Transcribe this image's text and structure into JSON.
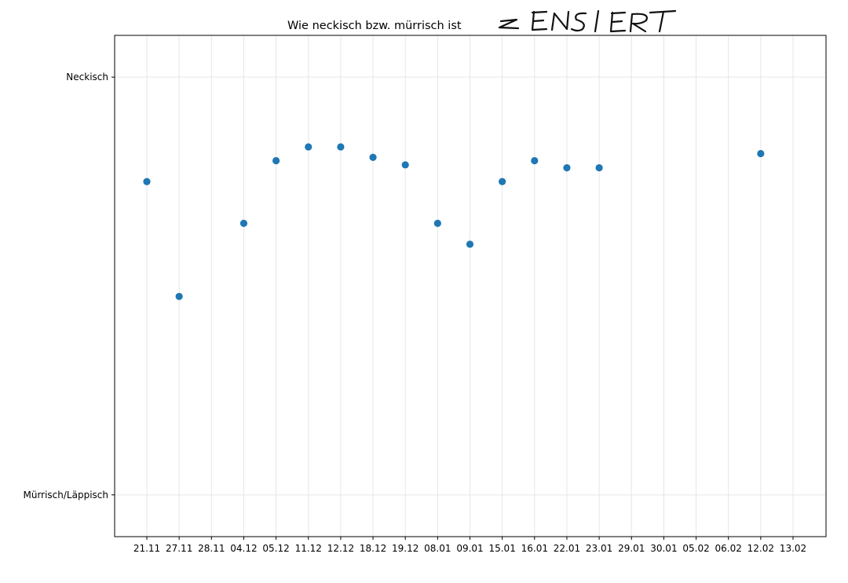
{
  "chart_data": {
    "type": "scatter",
    "title": "Wie neckisch bzw. mürrisch ist",
    "title_censored_mark": "ZENSIERT",
    "xlabel": "",
    "ylabel": "",
    "categories": [
      "21.11",
      "27.11",
      "28.11",
      "04.12",
      "05.12",
      "11.12",
      "12.12",
      "18.12",
      "19.12",
      "08.01",
      "09.01",
      "15.01",
      "16.01",
      "22.01",
      "23.01",
      "29.01",
      "30.01",
      "05.02",
      "06.02",
      "12.02",
      "13.02"
    ],
    "y_ticks": [
      {
        "label": "Neckisch",
        "value": 1
      },
      {
        "label": "Mürrisch/Läppisch",
        "value": 0
      }
    ],
    "ylim": [
      -0.1,
      1.1
    ],
    "grid": true,
    "point_color": "#1f77b4",
    "grid_color": "#e6e6e6",
    "points": [
      {
        "x": "21.11",
        "y": 0.75
      },
      {
        "x": "27.11",
        "y": 0.475
      },
      {
        "x": "04.12",
        "y": 0.65
      },
      {
        "x": "05.12",
        "y": 0.8
      },
      {
        "x": "11.12",
        "y": 0.833
      },
      {
        "x": "12.12",
        "y": 0.833
      },
      {
        "x": "18.12",
        "y": 0.808
      },
      {
        "x": "19.12",
        "y": 0.79
      },
      {
        "x": "08.01",
        "y": 0.65
      },
      {
        "x": "09.01",
        "y": 0.6
      },
      {
        "x": "15.01",
        "y": 0.75
      },
      {
        "x": "16.01",
        "y": 0.8
      },
      {
        "x": "22.01",
        "y": 0.783
      },
      {
        "x": "23.01",
        "y": 0.783
      },
      {
        "x": "12.02",
        "y": 0.817
      }
    ]
  }
}
